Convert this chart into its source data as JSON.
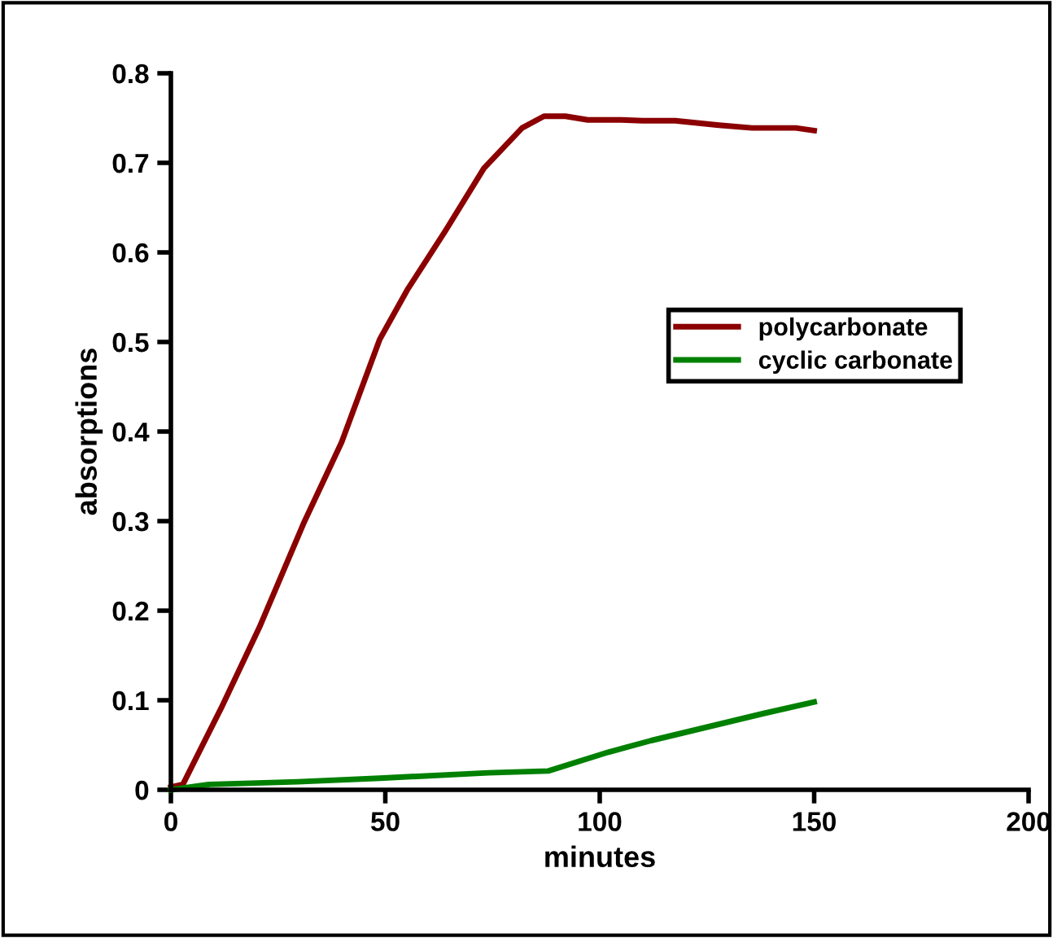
{
  "chart_data": {
    "type": "line",
    "xlabel": "minutes",
    "ylabel": "absorptions",
    "xlim": [
      0,
      200
    ],
    "ylim": [
      0,
      0.8
    ],
    "xticks": [
      0,
      50,
      100,
      150,
      200
    ],
    "yticks": [
      0,
      0.1,
      0.2,
      0.3,
      0.4,
      0.5,
      0.6,
      0.7,
      0.8
    ],
    "grid": false,
    "legend": "right",
    "marker": "none",
    "line_style": "solid",
    "series": [
      {
        "name": "polycarbonate",
        "color": "#8b0000",
        "x": [
          0,
          2.8,
          11.7,
          20.7,
          30.9,
          39.8,
          48.7,
          55.1,
          64,
          73,
          81.9,
          87,
          92,
          97.2,
          105,
          110,
          117.6,
          127.8,
          135.5,
          145.7,
          150
        ],
        "values": [
          0.003,
          0.006,
          0.091,
          0.182,
          0.297,
          0.388,
          0.503,
          0.558,
          0.624,
          0.694,
          0.739,
          0.752,
          0.752,
          0.748,
          0.748,
          0.747,
          0.747,
          0.742,
          0.739,
          0.739,
          0.736
        ]
      },
      {
        "name": "cyclic carbonate",
        "color": "#008000",
        "x": [
          0,
          9,
          29.6,
          48.7,
          74,
          88,
          102,
          112,
          125,
          138,
          150
        ],
        "values": [
          0,
          0.006,
          0.009,
          0.013,
          0.019,
          0.021,
          0.042,
          0.055,
          0.07,
          0.085,
          0.098
        ]
      }
    ]
  }
}
